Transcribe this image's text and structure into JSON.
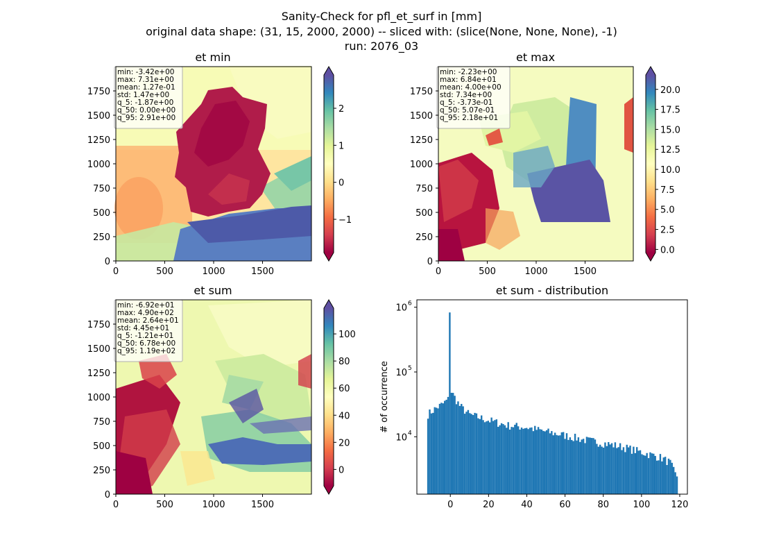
{
  "figure": {
    "suptitle": [
      "Sanity-Check for pfl_et_surf in [mm]",
      "original data shape: (31, 15, 2000, 2000) -- sliced with: (slice(None, None, None), -1)",
      "run: 2076_03"
    ]
  },
  "chart_data": [
    {
      "type": "heatmap",
      "title": "et min",
      "colormap": "Spectral",
      "xlim": [
        0,
        2000
      ],
      "ylim": [
        0,
        2000
      ],
      "xticks": [
        "0",
        "500",
        "1000",
        "1500"
      ],
      "yticks": [
        "0",
        "250",
        "500",
        "750",
        "1000",
        "1250",
        "1500",
        "1750"
      ],
      "colorbar": {
        "range": [
          -1.9,
          2.9
        ],
        "ticks": [
          "−1",
          "0",
          "1",
          "2"
        ],
        "tick_values": [
          -1,
          0,
          1,
          2
        ],
        "extend": "both"
      },
      "stats": [
        "min: -3.42e+00",
        "max: 7.31e+00",
        "mean: 1.27e-01",
        "std: 1.47e+00",
        "q_5: -1.87e+00",
        "q_50: 0.00e+00",
        "q_95: 2.91e+00"
      ]
    },
    {
      "type": "heatmap",
      "title": "et max",
      "colormap": "Spectral",
      "xlim": [
        0,
        2000
      ],
      "ylim": [
        0,
        2000
      ],
      "xticks": [
        "0",
        "500",
        "1000",
        "1500"
      ],
      "yticks": [
        "0",
        "250",
        "500",
        "750",
        "1000",
        "1250",
        "1500",
        "1750"
      ],
      "colorbar": {
        "range": [
          -0.4,
          21.8
        ],
        "ticks": [
          "0.0",
          "2.5",
          "5.0",
          "7.5",
          "10.0",
          "12.5",
          "15.0",
          "17.5",
          "20.0"
        ],
        "tick_values": [
          0,
          2.5,
          5,
          7.5,
          10,
          12.5,
          15,
          17.5,
          20
        ],
        "extend": "both"
      },
      "stats": [
        "min: -2.23e+00",
        "max: 6.84e+01",
        "mean: 4.00e+00",
        "std: 7.34e+00",
        "q_5: -3.73e-01",
        "q_50: 5.07e-01",
        "q_95: 2.18e+01"
      ]
    },
    {
      "type": "heatmap",
      "title": "et sum",
      "colormap": "Spectral",
      "xlim": [
        0,
        2000
      ],
      "ylim": [
        0,
        2000
      ],
      "xticks": [
        "0",
        "500",
        "1000",
        "1500"
      ],
      "yticks": [
        "0",
        "250",
        "500",
        "750",
        "1000",
        "1250",
        "1500",
        "1750"
      ],
      "colorbar": {
        "range": [
          -12.1,
          119
        ],
        "ticks": [
          "0",
          "20",
          "40",
          "60",
          "80",
          "100"
        ],
        "tick_values": [
          0,
          20,
          40,
          60,
          80,
          100
        ],
        "extend": "both"
      },
      "stats": [
        "min: -6.92e+01",
        "max: 4.90e+02",
        "mean: 2.64e+01",
        "std: 4.45e+01",
        "q_5: -1.21e+01",
        "q_50: 6.78e+00",
        "q_95: 1.19e+02"
      ]
    },
    {
      "type": "bar",
      "title": "et sum - distribution",
      "xlabel": "",
      "ylabel": "# of occurrence",
      "yscale": "log",
      "xlim": [
        -17.5,
        124
      ],
      "ylim": [
        1300,
        1300000
      ],
      "xticks": [
        "0",
        "20",
        "40",
        "60",
        "80",
        "100",
        "120"
      ],
      "xtick_values": [
        0,
        20,
        40,
        60,
        80,
        100,
        120
      ],
      "yticks": [
        "10",
        "10",
        "10"
      ],
      "ytick_exponents": [
        "4",
        "5",
        "6"
      ],
      "ytick_values": [
        10000,
        100000,
        1000000
      ],
      "color": "#1f77b4",
      "bin_edges_range": [
        -12.1,
        119
      ],
      "anchor_counts": [
        [
          -12,
          22000
        ],
        [
          -8,
          27000
        ],
        [
          -4,
          32000
        ],
        [
          -1,
          38000
        ],
        [
          0,
          830000
        ],
        [
          0.5,
          50000
        ],
        [
          2,
          42000
        ],
        [
          5,
          30000
        ],
        [
          10,
          22000
        ],
        [
          20,
          18000
        ],
        [
          30,
          15000
        ],
        [
          40,
          14000
        ],
        [
          50,
          12000
        ],
        [
          60,
          10500
        ],
        [
          70,
          9000
        ],
        [
          80,
          8000
        ],
        [
          90,
          7000
        ],
        [
          100,
          5800
        ],
        [
          110,
          4800
        ],
        [
          115,
          4000
        ],
        [
          118,
          2500
        ]
      ]
    }
  ]
}
